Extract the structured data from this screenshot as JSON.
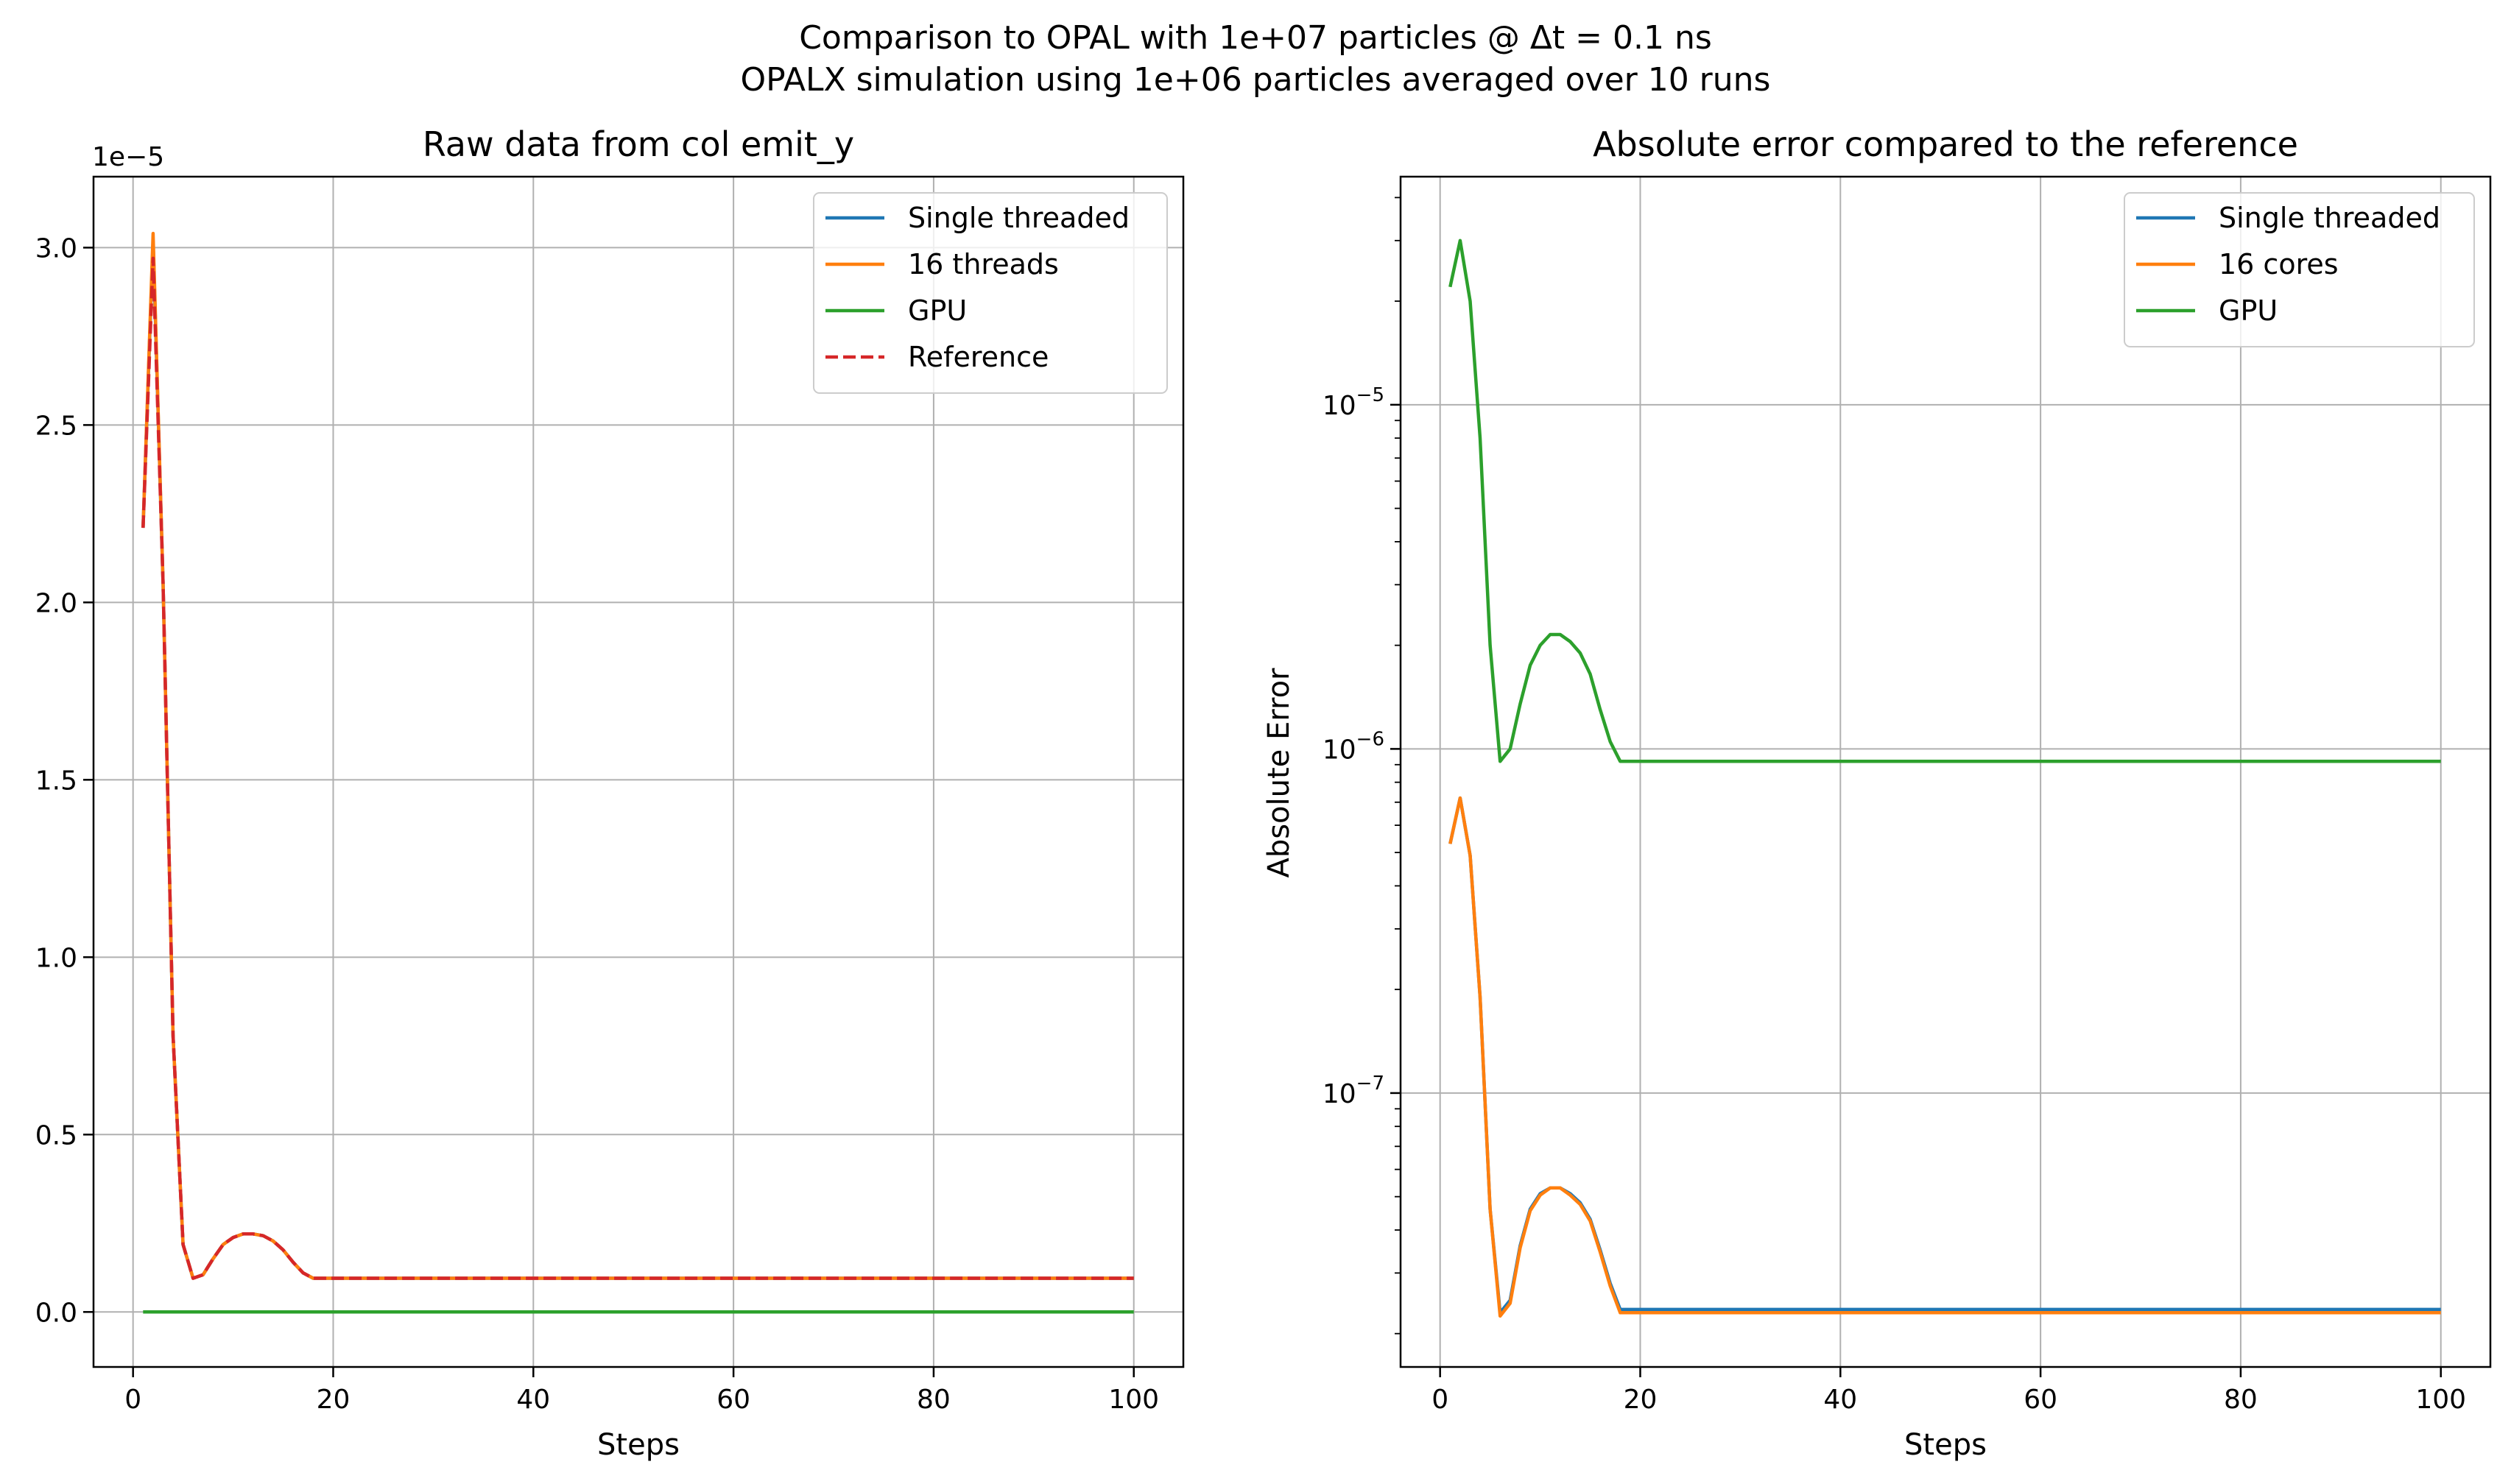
{
  "figure": {
    "suptitle_line1": "Comparison to OPAL with 1e+07 particles @ Δt = 0.1 ns",
    "suptitle_line2": "OPALX simulation using 1e+06 particles averaged over 10 runs"
  },
  "colors": {
    "single_threaded": "#1f77b4",
    "threads": "#ff7f0e",
    "gpu": "#2ca02c",
    "reference": "#d62728",
    "grid": "#b0b0b0"
  },
  "chart_data": [
    {
      "type": "line",
      "title": "Raw data from col emit_y",
      "xlabel": "Steps",
      "ylabel": "",
      "offset_label": "1e−5",
      "xlim": [
        -3.95,
        104.95
      ],
      "ylim": [
        -0.155,
        3.2
      ],
      "xticks": [
        0,
        20,
        40,
        60,
        80,
        100
      ],
      "xtick_labels": [
        "0",
        "20",
        "40",
        "60",
        "80",
        "100"
      ],
      "yticks": [
        0.0,
        0.5,
        1.0,
        1.5,
        2.0,
        2.5,
        3.0
      ],
      "ytick_labels": [
        "0.0",
        "0.5",
        "1.0",
        "1.5",
        "2.0",
        "2.5",
        "3.0"
      ],
      "grid": true,
      "legend_position": "top-right",
      "series": [
        {
          "name": "Single threaded",
          "color": "#1f77b4",
          "dash": "solid",
          "x": [
            1,
            2,
            3,
            4,
            5,
            6,
            7,
            8,
            9,
            10,
            11,
            12,
            13,
            14,
            15,
            16,
            17,
            18,
            100
          ],
          "y": [
            2.21,
            3.02,
            2.05,
            0.78,
            0.19,
            0.095,
            0.105,
            0.15,
            0.19,
            0.21,
            0.22,
            0.22,
            0.215,
            0.2,
            0.175,
            0.14,
            0.11,
            0.095,
            0.095
          ]
        },
        {
          "name": "16 threads",
          "color": "#ff7f0e",
          "dash": "solid",
          "x": [
            1,
            2,
            3,
            4,
            5,
            6,
            7,
            8,
            9,
            10,
            11,
            12,
            13,
            14,
            15,
            16,
            17,
            18,
            100
          ],
          "y": [
            2.21,
            3.04,
            2.05,
            0.78,
            0.19,
            0.095,
            0.105,
            0.15,
            0.19,
            0.21,
            0.22,
            0.22,
            0.215,
            0.2,
            0.175,
            0.14,
            0.11,
            0.095,
            0.095
          ]
        },
        {
          "name": "GPU",
          "color": "#2ca02c",
          "dash": "solid",
          "x": [
            1,
            100
          ],
          "y": [
            0.0,
            0.0
          ]
        },
        {
          "name": "Reference",
          "color": "#d62728",
          "dash": "dashed",
          "x": [
            1,
            2,
            3,
            4,
            5,
            6,
            7,
            8,
            9,
            10,
            11,
            12,
            13,
            14,
            15,
            16,
            17,
            18,
            100
          ],
          "y": [
            2.21,
            2.97,
            2.05,
            0.78,
            0.19,
            0.095,
            0.105,
            0.15,
            0.19,
            0.21,
            0.22,
            0.22,
            0.215,
            0.2,
            0.175,
            0.14,
            0.11,
            0.095,
            0.095
          ]
        }
      ]
    },
    {
      "type": "line",
      "title": "Absolute error compared to the reference",
      "xlabel": "Steps",
      "ylabel": "Absolute Error",
      "yscale": "log",
      "xlim": [
        -3.95,
        104.95
      ],
      "ylim": [
        1.6e-08,
        4.6e-05
      ],
      "xticks": [
        0,
        20,
        40,
        60,
        80,
        100
      ],
      "xtick_labels": [
        "0",
        "20",
        "40",
        "60",
        "80",
        "100"
      ],
      "yticks": [
        1e-07,
        1e-06,
        1e-05
      ],
      "ytick_labels": [
        "10−7",
        "10−6",
        "10−5"
      ],
      "grid": true,
      "legend_position": "top-right",
      "series": [
        {
          "name": "Single threaded",
          "color": "#1f77b4",
          "dash": "solid",
          "x": [
            1,
            2,
            3,
            4,
            5,
            6,
            7,
            8,
            9,
            10,
            11,
            12,
            13,
            14,
            15,
            16,
            17,
            18,
            100
          ],
          "y": [
            5.3e-07,
            7.2e-07,
            4.9e-07,
            1.9e-07,
            4.6e-08,
            2.3e-08,
            2.5e-08,
            3.6e-08,
            4.6e-08,
            5.1e-08,
            5.3e-08,
            5.3e-08,
            5.1e-08,
            4.8e-08,
            4.3e-08,
            3.5e-08,
            2.8e-08,
            2.35e-08,
            2.35e-08
          ]
        },
        {
          "name": "16 cores",
          "color": "#ff7f0e",
          "dash": "solid",
          "x": [
            1,
            2,
            3,
            4,
            5,
            6,
            7,
            8,
            9,
            10,
            11,
            12,
            13,
            14,
            15,
            16,
            17,
            18,
            100
          ],
          "y": [
            5.3e-07,
            7.2e-07,
            4.9e-07,
            1.9e-07,
            4.6e-08,
            2.25e-08,
            2.45e-08,
            3.55e-08,
            4.55e-08,
            5.05e-08,
            5.3e-08,
            5.3e-08,
            5.05e-08,
            4.75e-08,
            4.25e-08,
            3.45e-08,
            2.75e-08,
            2.3e-08,
            2.3e-08
          ]
        },
        {
          "name": "GPU",
          "color": "#2ca02c",
          "dash": "solid",
          "x": [
            1,
            2,
            3,
            4,
            5,
            6,
            7,
            8,
            9,
            10,
            11,
            12,
            13,
            14,
            15,
            16,
            17,
            18,
            100
          ],
          "y": [
            2.2e-05,
            3e-05,
            2e-05,
            8e-06,
            2e-06,
            9.2e-07,
            1e-06,
            1.35e-06,
            1.75e-06,
            2e-06,
            2.15e-06,
            2.15e-06,
            2.05e-06,
            1.9e-06,
            1.65e-06,
            1.3e-06,
            1.05e-06,
            9.2e-07,
            9.2e-07
          ]
        }
      ]
    }
  ]
}
